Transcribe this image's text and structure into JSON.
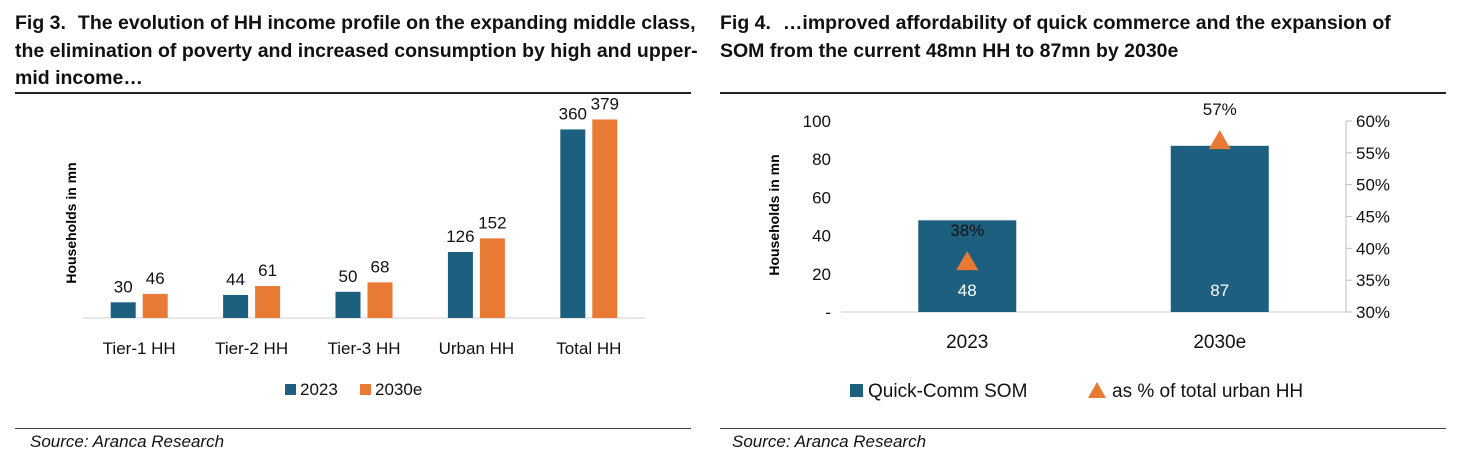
{
  "colors": {
    "series_2023": "#1D5F7E",
    "series_2030e": "#E97A35",
    "bar": "#1D5F7E",
    "marker": "#E97A35"
  },
  "fig3": {
    "title_prefix": "Fig 3.",
    "title_text": "The evolution of HH income profile on the expanding middle class, the elimination of poverty and increased consumption by high and upper-mid income…",
    "source": "Source: Aranca Research"
  },
  "fig4": {
    "title_prefix": "Fig 4.",
    "title_text": "…improved affordability of quick commerce and the expansion of SOM from the current 48mn HH to 87mn by 2030e",
    "source": "Source: Aranca Research"
  },
  "chart_data": [
    {
      "type": "bar",
      "ylabel": "Households in mn",
      "categories": [
        "Tier-1 HH",
        "Tier-2 HH",
        "Tier-3 HH",
        "Urban HH",
        "Total HH"
      ],
      "series": [
        {
          "name": "2023",
          "values": [
            30,
            44,
            50,
            126,
            360
          ]
        },
        {
          "name": "2030e",
          "values": [
            46,
            61,
            68,
            152,
            379
          ]
        }
      ],
      "ylim": [
        0,
        420
      ],
      "legend": "bottom",
      "grid": false
    },
    {
      "type": "bar",
      "ylabel": "Households in mn",
      "categories": [
        "2023",
        "2030e"
      ],
      "series": [
        {
          "name": "Quick-Comm SOM",
          "values": [
            48,
            87
          ],
          "axis": "left"
        },
        {
          "name": "as % of total urban HH",
          "values": [
            38,
            57
          ],
          "value_labels": [
            "38%",
            "57%"
          ],
          "axis": "right",
          "marker": "triangle"
        }
      ],
      "y_ticks": [
        "-",
        "20",
        "40",
        "60",
        "80",
        "100"
      ],
      "ylim": [
        0,
        100
      ],
      "y2_ticks": [
        "30%",
        "35%",
        "40%",
        "45%",
        "50%",
        "55%",
        "60%"
      ],
      "y2lim": [
        30,
        60
      ],
      "legend": "bottom",
      "grid": false
    }
  ]
}
